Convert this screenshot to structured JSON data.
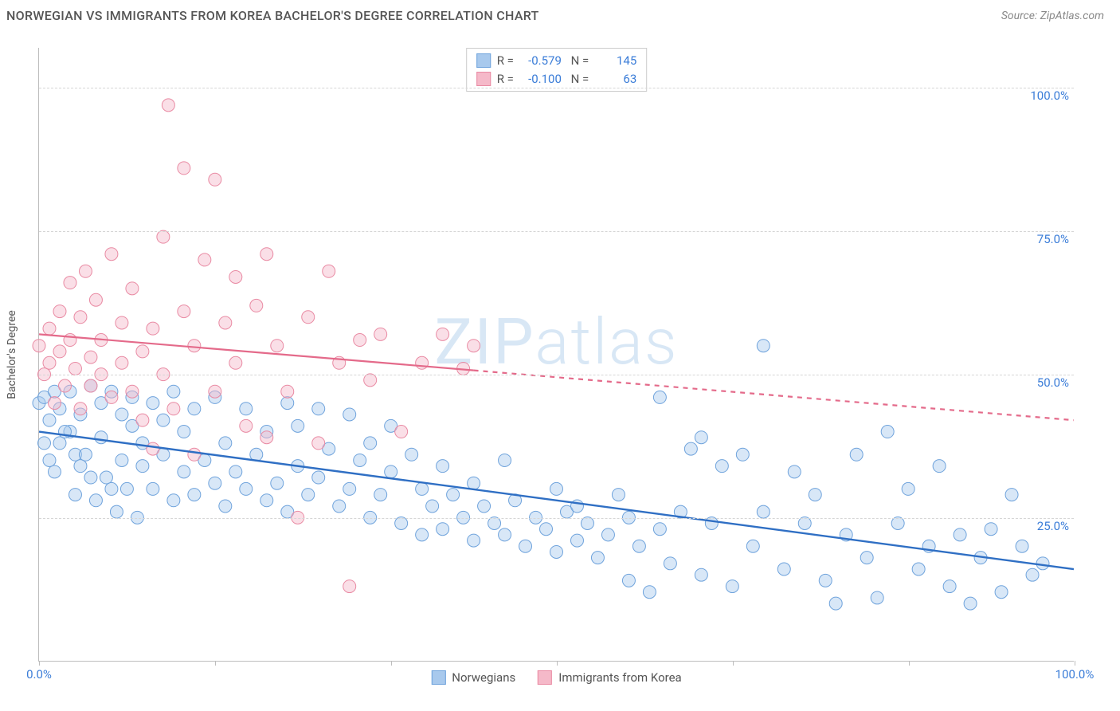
{
  "header": {
    "title": "NORWEGIAN VS IMMIGRANTS FROM KOREA BACHELOR'S DEGREE CORRELATION CHART",
    "source": "Source: ZipAtlas.com"
  },
  "watermark": {
    "left": "ZIP",
    "right": "atlas"
  },
  "chart": {
    "type": "scatter",
    "ylabel": "Bachelor's Degree",
    "xlim": [
      0,
      100
    ],
    "ylim": [
      0,
      107
    ],
    "xticks": [
      0,
      17,
      34,
      50,
      67,
      84,
      100
    ],
    "xtick_labels": {
      "0": "0.0%",
      "100": "100.0%"
    },
    "yticks": [
      25,
      50,
      75,
      100
    ],
    "ytick_labels": {
      "25": "25.0%",
      "50": "50.0%",
      "75": "75.0%",
      "100": "100.0%"
    },
    "grid_color": "#d6d6d6",
    "axis_color": "#bdbdbd",
    "background_color": "#ffffff",
    "tick_label_color": "#3b7dd8",
    "marker_radius": 8,
    "marker_opacity": 0.45,
    "series": [
      {
        "name": "Norwegians",
        "fill": "#a8c9ed",
        "stroke": "#6fa3dc",
        "line_color": "#2f6fc4",
        "line_width": 2.4,
        "line_dash": "none",
        "regression": {
          "x1": 0,
          "y1": 40,
          "x2": 100,
          "y2": 16
        },
        "stats": {
          "R": "-0.579",
          "N": "145"
        },
        "points": [
          [
            0,
            45
          ],
          [
            0.5,
            46
          ],
          [
            1,
            35
          ],
          [
            1,
            42
          ],
          [
            1.5,
            47
          ],
          [
            2,
            44
          ],
          [
            2,
            38
          ],
          [
            3,
            40
          ],
          [
            3,
            47
          ],
          [
            3.5,
            36
          ],
          [
            4,
            43
          ],
          [
            4,
            34
          ],
          [
            5,
            48
          ],
          [
            5,
            32
          ],
          [
            6,
            45
          ],
          [
            6,
            39
          ],
          [
            7,
            47
          ],
          [
            7,
            30
          ],
          [
            8,
            35
          ],
          [
            8,
            43
          ],
          [
            9,
            41
          ],
          [
            9,
            46
          ],
          [
            10,
            38
          ],
          [
            10,
            34
          ],
          [
            11,
            45
          ],
          [
            11,
            30
          ],
          [
            12,
            42
          ],
          [
            12,
            36
          ],
          [
            13,
            28
          ],
          [
            13,
            47
          ],
          [
            14,
            33
          ],
          [
            14,
            40
          ],
          [
            15,
            44
          ],
          [
            15,
            29
          ],
          [
            16,
            35
          ],
          [
            17,
            31
          ],
          [
            17,
            46
          ],
          [
            18,
            38
          ],
          [
            18,
            27
          ],
          [
            19,
            33
          ],
          [
            20,
            44
          ],
          [
            20,
            30
          ],
          [
            21,
            36
          ],
          [
            22,
            28
          ],
          [
            22,
            40
          ],
          [
            23,
            31
          ],
          [
            24,
            45
          ],
          [
            24,
            26
          ],
          [
            25,
            41
          ],
          [
            25,
            34
          ],
          [
            26,
            29
          ],
          [
            27,
            32
          ],
          [
            27,
            44
          ],
          [
            28,
            37
          ],
          [
            29,
            27
          ],
          [
            30,
            43
          ],
          [
            30,
            30
          ],
          [
            31,
            35
          ],
          [
            32,
            25
          ],
          [
            32,
            38
          ],
          [
            33,
            29
          ],
          [
            34,
            33
          ],
          [
            34,
            41
          ],
          [
            35,
            24
          ],
          [
            36,
            36
          ],
          [
            37,
            22
          ],
          [
            37,
            30
          ],
          [
            38,
            27
          ],
          [
            39,
            34
          ],
          [
            39,
            23
          ],
          [
            40,
            29
          ],
          [
            41,
            25
          ],
          [
            42,
            31
          ],
          [
            42,
            21
          ],
          [
            43,
            27
          ],
          [
            44,
            24
          ],
          [
            45,
            22
          ],
          [
            45,
            35
          ],
          [
            46,
            28
          ],
          [
            47,
            20
          ],
          [
            48,
            25
          ],
          [
            49,
            23
          ],
          [
            50,
            30
          ],
          [
            50,
            19
          ],
          [
            51,
            26
          ],
          [
            52,
            27
          ],
          [
            52,
            21
          ],
          [
            53,
            24
          ],
          [
            54,
            18
          ],
          [
            55,
            22
          ],
          [
            56,
            29
          ],
          [
            57,
            14
          ],
          [
            57,
            25
          ],
          [
            58,
            20
          ],
          [
            59,
            12
          ],
          [
            60,
            46
          ],
          [
            60,
            23
          ],
          [
            61,
            17
          ],
          [
            62,
            26
          ],
          [
            63,
            37
          ],
          [
            64,
            39
          ],
          [
            64,
            15
          ],
          [
            65,
            24
          ],
          [
            66,
            34
          ],
          [
            67,
            13
          ],
          [
            68,
            36
          ],
          [
            69,
            20
          ],
          [
            70,
            55
          ],
          [
            70,
            26
          ],
          [
            72,
            16
          ],
          [
            73,
            33
          ],
          [
            74,
            24
          ],
          [
            75,
            29
          ],
          [
            76,
            14
          ],
          [
            77,
            10
          ],
          [
            78,
            22
          ],
          [
            79,
            36
          ],
          [
            80,
            18
          ],
          [
            81,
            11
          ],
          [
            82,
            40
          ],
          [
            83,
            24
          ],
          [
            84,
            30
          ],
          [
            85,
            16
          ],
          [
            86,
            20
          ],
          [
            87,
            34
          ],
          [
            88,
            13
          ],
          [
            89,
            22
          ],
          [
            90,
            10
          ],
          [
            91,
            18
          ],
          [
            92,
            23
          ],
          [
            93,
            12
          ],
          [
            94,
            29
          ],
          [
            95,
            20
          ],
          [
            96,
            15
          ],
          [
            97,
            17
          ],
          [
            0.5,
            38
          ],
          [
            1.5,
            33
          ],
          [
            2.5,
            40
          ],
          [
            3.5,
            29
          ],
          [
            4.5,
            36
          ],
          [
            5.5,
            28
          ],
          [
            6.5,
            32
          ],
          [
            7.5,
            26
          ],
          [
            8.5,
            30
          ],
          [
            9.5,
            25
          ]
        ]
      },
      {
        "name": "Immigrants from Korea",
        "fill": "#f5b9c9",
        "stroke": "#e98aa3",
        "line_color": "#e46a8a",
        "line_width": 2.2,
        "line_dash": "none",
        "dash_after_x": 42,
        "regression": {
          "x1": 0,
          "y1": 57,
          "x2": 100,
          "y2": 42
        },
        "stats": {
          "R": "-0.100",
          "N": "63"
        },
        "points": [
          [
            0,
            55
          ],
          [
            0.5,
            50
          ],
          [
            1,
            58
          ],
          [
            1,
            52
          ],
          [
            1.5,
            45
          ],
          [
            2,
            61
          ],
          [
            2,
            54
          ],
          [
            2.5,
            48
          ],
          [
            3,
            66
          ],
          [
            3,
            56
          ],
          [
            3.5,
            51
          ],
          [
            4,
            60
          ],
          [
            4,
            44
          ],
          [
            4.5,
            68
          ],
          [
            5,
            53
          ],
          [
            5,
            48
          ],
          [
            5.5,
            63
          ],
          [
            6,
            50
          ],
          [
            6,
            56
          ],
          [
            7,
            46
          ],
          [
            7,
            71
          ],
          [
            8,
            52
          ],
          [
            8,
            59
          ],
          [
            9,
            47
          ],
          [
            9,
            65
          ],
          [
            10,
            54
          ],
          [
            10,
            42
          ],
          [
            11,
            37
          ],
          [
            11,
            58
          ],
          [
            12,
            50
          ],
          [
            12,
            74
          ],
          [
            12.5,
            97
          ],
          [
            13,
            44
          ],
          [
            14,
            61
          ],
          [
            14,
            86
          ],
          [
            15,
            36
          ],
          [
            15,
            55
          ],
          [
            16,
            70
          ],
          [
            17,
            47
          ],
          [
            17,
            84
          ],
          [
            18,
            59
          ],
          [
            19,
            52
          ],
          [
            19,
            67
          ],
          [
            20,
            41
          ],
          [
            21,
            62
          ],
          [
            22,
            39
          ],
          [
            22,
            71
          ],
          [
            23,
            55
          ],
          [
            24,
            47
          ],
          [
            25,
            25
          ],
          [
            26,
            60
          ],
          [
            27,
            38
          ],
          [
            28,
            68
          ],
          [
            29,
            52
          ],
          [
            30,
            13
          ],
          [
            31,
            56
          ],
          [
            32,
            49
          ],
          [
            33,
            57
          ],
          [
            35,
            40
          ],
          [
            37,
            52
          ],
          [
            39,
            57
          ],
          [
            41,
            51
          ],
          [
            42,
            55
          ]
        ]
      }
    ]
  }
}
